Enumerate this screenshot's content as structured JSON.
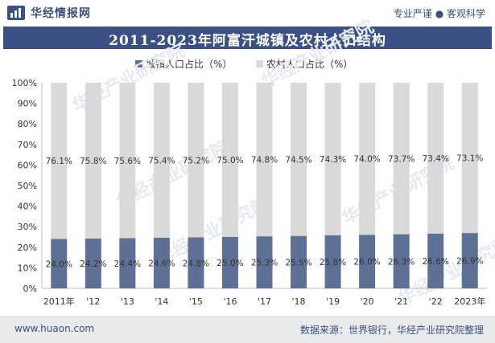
{
  "header": {
    "brand": "华经情报网",
    "tagline": "专业严谨 ● 客观科学"
  },
  "title": "2011-2023年阿富汗城镇及农村人口结构",
  "legend": [
    {
      "label": "城镇人口占比（%）",
      "color": "#5f7097"
    },
    {
      "label": "农村人口占比（%）",
      "color": "#d9d9d9"
    }
  ],
  "chart_data": {
    "type": "bar",
    "stacked": true,
    "categories": [
      "2011年",
      "'12",
      "'13",
      "'14",
      "'15",
      "'16",
      "'17",
      "'18",
      "'19",
      "'20",
      "'21",
      "'22",
      "2023年"
    ],
    "series": [
      {
        "name": "城镇人口占比（%）",
        "values": [
          24.0,
          24.2,
          24.4,
          24.6,
          24.8,
          25.0,
          25.3,
          25.5,
          25.8,
          26.0,
          26.3,
          26.6,
          26.9
        ],
        "color": "#5f7097"
      },
      {
        "name": "农村人口占比（%）",
        "values": [
          76.1,
          75.8,
          75.6,
          75.4,
          75.2,
          75.0,
          74.8,
          74.5,
          74.3,
          74.0,
          73.7,
          73.4,
          73.1
        ],
        "color": "#d9d9d9"
      }
    ],
    "y_ticks": [
      "0%",
      "10%",
      "20%",
      "30%",
      "40%",
      "50%",
      "60%",
      "70%",
      "80%",
      "90%",
      "100%"
    ],
    "ylim": [
      0,
      100
    ],
    "grid": false,
    "legend_position": "top"
  },
  "footer": {
    "url": "www.huaon.com",
    "source": "数据来源：世界银行，华经产业研究院整理"
  },
  "watermark": "华经产业研究院"
}
